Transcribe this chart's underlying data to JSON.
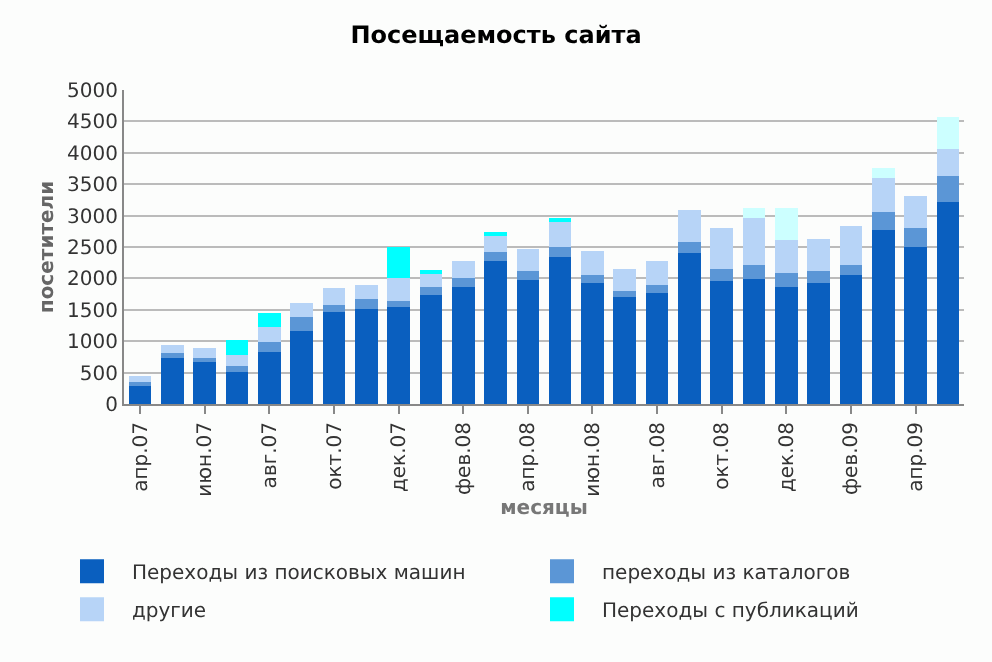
{
  "chart_data": {
    "type": "bar",
    "title": "Посещаемость сайта",
    "xlabel": "месяцы",
    "ylabel": "посетители",
    "stacked": true,
    "grid": "y",
    "legend": "bottom",
    "categories": [
      "апр.07",
      null,
      "июн.07",
      null,
      "авг.07",
      null,
      "окт.07",
      null,
      "дек.07",
      null,
      "фев.08",
      null,
      "апр.08",
      null,
      "июн.08",
      null,
      "авг.08",
      null,
      "окт.08",
      null,
      "дек.08",
      null,
      "фев.09",
      null,
      "апр.09",
      null
    ],
    "ylim": [
      0,
      5000
    ],
    "yticks": [
      0,
      500,
      1000,
      1500,
      2000,
      2500,
      3000,
      3500,
      4000,
      4500,
      5000
    ],
    "series": [
      {
        "name": "Переходы из поисковых машин",
        "color": "#0a5fbf",
        "values": [
          290,
          730,
          700,
          515,
          830,
          1160,
          1460,
          1505,
          1540,
          1730,
          1870,
          2280,
          1970,
          2345,
          1925,
          1700,
          1765,
          2410,
          1955,
          1990,
          1860,
          1925,
          2055,
          2765,
          2505,
          3215
        ]
      },
      {
        "name": "переходы из каталогов",
        "color": "#5b96d6",
        "values": [
          65,
          75,
          40,
          85,
          160,
          225,
          110,
          170,
          95,
          140,
          130,
          140,
          150,
          160,
          130,
          95,
          125,
          170,
          195,
          225,
          225,
          195,
          160,
          290,
          290,
          420
        ]
      },
      {
        "name": "другие",
        "color": "#b7d4f7",
        "values": [
          95,
          130,
          150,
          175,
          235,
          225,
          270,
          225,
          365,
          205,
          280,
          280,
          355,
          410,
          385,
          355,
          390,
          505,
          645,
          740,
          530,
          515,
          615,
          545,
          515,
          420
        ]
      },
      {
        "name": "Переходы с публикаций",
        "color": "#00ffff",
        "values": [
          0,
          0,
          0,
          245,
          225,
          0,
          0,
          0,
          505,
          45,
          0,
          30,
          0,
          30,
          0,
          0,
          0,
          0,
          0,
          0,
          0,
          0,
          0,
          0,
          0,
          0
        ]
      },
      {
        "color": "#ccffff",
        "values": [
          0,
          0,
          0,
          0,
          0,
          0,
          0,
          0,
          0,
          0,
          0,
          0,
          0,
          0,
          0,
          0,
          0,
          0,
          0,
          165,
          505,
          0,
          0,
          165,
          0,
          515
        ]
      }
    ]
  }
}
